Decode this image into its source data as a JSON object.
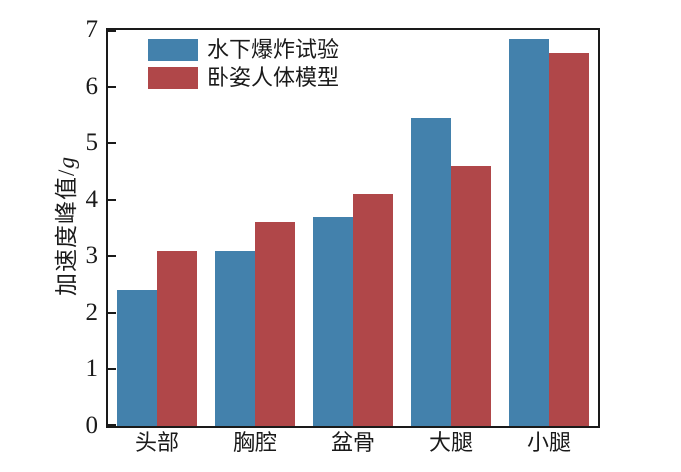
{
  "axis_color": "#1a1a1a",
  "background_color": "#ffffff",
  "chart_data": {
    "type": "bar",
    "title": "",
    "categories": [
      "头部",
      "胸腔",
      "盆骨",
      "大腿",
      "小腿"
    ],
    "series": [
      {
        "name": "水下爆炸试验",
        "color": "#4381ac",
        "values": [
          2.4,
          3.1,
          3.7,
          5.45,
          6.85
        ]
      },
      {
        "name": "卧姿人体模型",
        "color": "#b04749",
        "values": [
          3.1,
          3.6,
          4.1,
          4.6,
          6.6
        ]
      }
    ],
    "xlabel": "",
    "ylabel": "加速度峰值/g",
    "ylabel_prefix": "加速度峰值/",
    "ylabel_unit_italic": "g",
    "ylim": [
      0,
      7
    ],
    "yticks": [
      "0",
      "1",
      "2",
      "3",
      "4",
      "5",
      "6",
      "7"
    ],
    "grid": false,
    "legend_position": "upper-left-inside",
    "ticks_direction": "in"
  }
}
